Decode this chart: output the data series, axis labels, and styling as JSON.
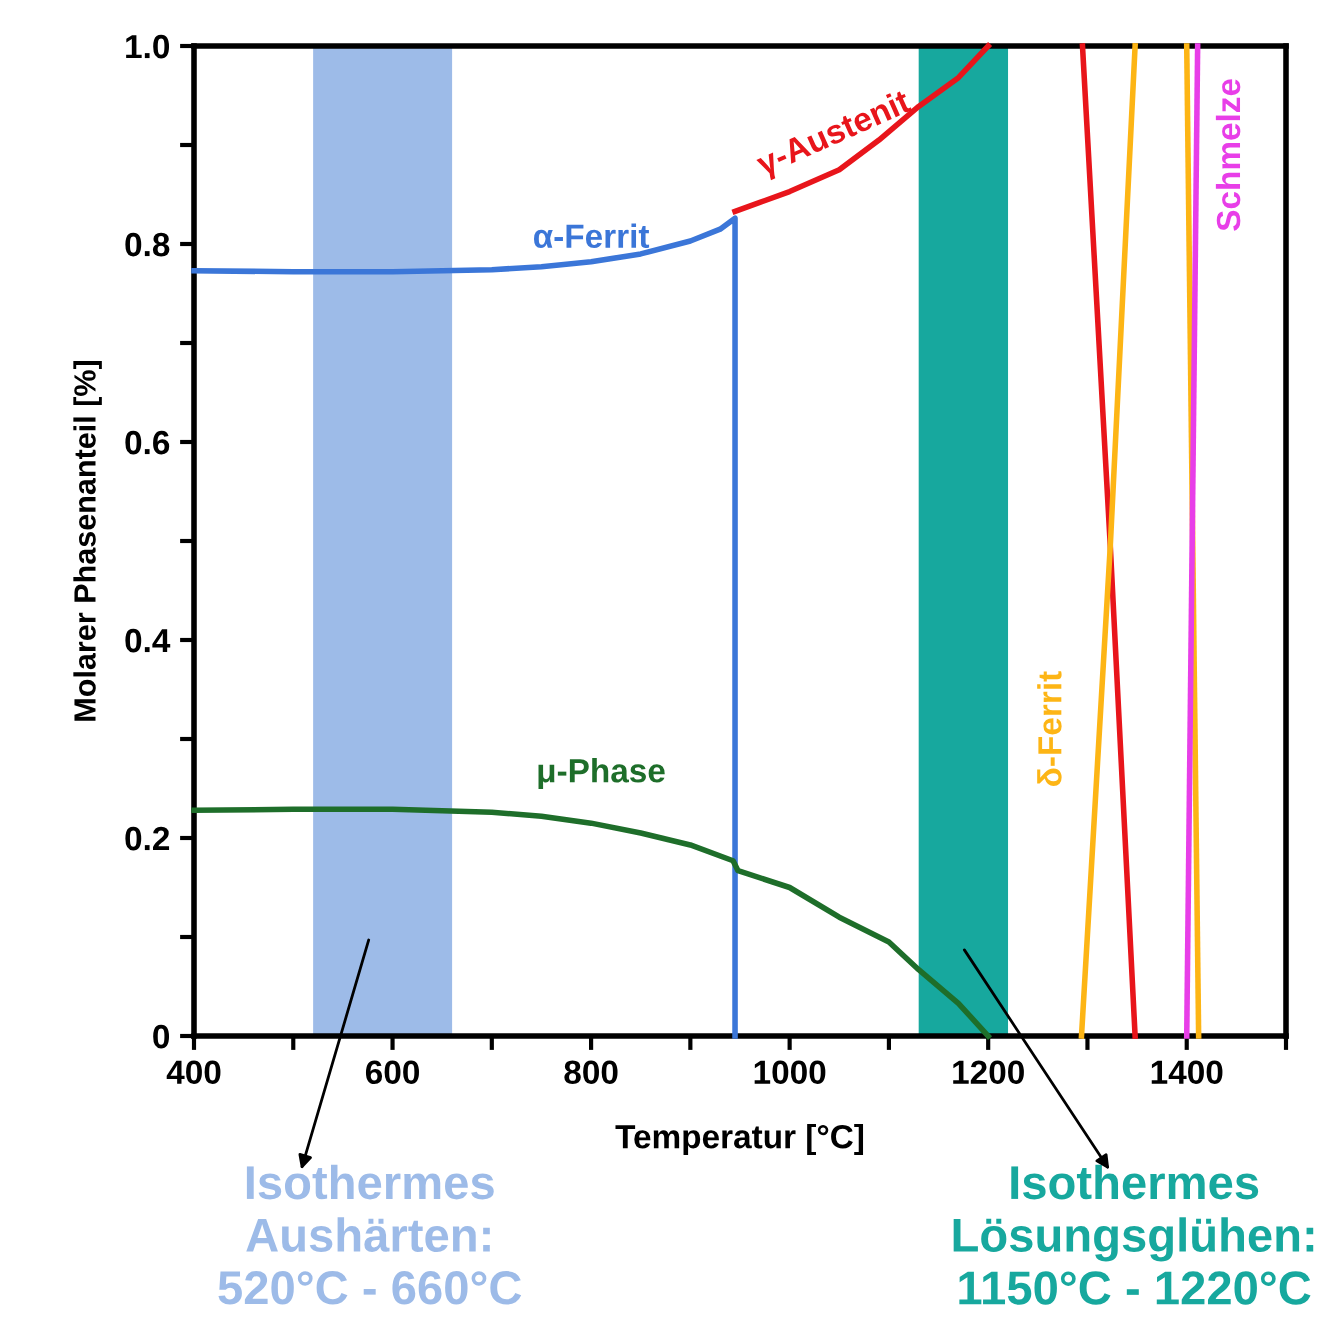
{
  "chart_data": {
    "type": "line",
    "xlabel": "Temperatur [°C]",
    "ylabel": "Molarer Phasenanteil [%]",
    "xlim": [
      400,
      1500
    ],
    "ylim": [
      0,
      1
    ],
    "xticks": [
      400,
      {
        "value": 500,
        "label": null
      },
      600,
      {
        "value": 700,
        "label": null
      },
      800,
      {
        "value": 900,
        "label": null
      },
      1000,
      {
        "value": 1100,
        "label": null
      },
      1200,
      {
        "value": 1300,
        "label": null
      },
      1400,
      {
        "value": 1500,
        "label": null
      }
    ],
    "yticks": [
      {
        "value": 0,
        "label": "0"
      },
      {
        "value": 0.1,
        "label": null
      },
      {
        "value": 0.2,
        "label": "0.2"
      },
      {
        "value": 0.3,
        "label": null
      },
      {
        "value": 0.4,
        "label": "0.4"
      },
      {
        "value": 0.5,
        "label": null
      },
      {
        "value": 0.6,
        "label": "0.6"
      },
      {
        "value": 0.7,
        "label": null
      },
      {
        "value": 0.8,
        "label": "0.8"
      },
      {
        "value": 0.9,
        "label": null
      },
      {
        "value": 1,
        "label": "1.0"
      }
    ],
    "grid": false,
    "legend": false,
    "marker": "none",
    "line_style": "solid",
    "bands": [
      {
        "axis": "x",
        "from": 520,
        "to": 660,
        "label": "Isothermes\nAushärten:\n520°C - 660°C",
        "color": "#9dbbe8"
      },
      {
        "axis": "x",
        "from": 1130,
        "to": 1220,
        "label": "Isothermes\nLösungsglühen:\n1150°C - 1220°C",
        "color": "#17a89e"
      }
    ],
    "series": [
      {
        "name": "α-Ferrit",
        "color": "#3b76d8",
        "x": [
          400,
          500,
          600,
          700,
          750,
          800,
          850,
          900,
          930,
          945,
          945
        ],
        "values": [
          0.773,
          0.772,
          0.772,
          0.774,
          0.777,
          0.782,
          0.79,
          0.803,
          0.815,
          0.826,
          0
        ]
      },
      {
        "name": "γ-Austenit",
        "color": "#e8151b",
        "x": [
          945,
          970,
          1000,
          1050,
          1090,
          1130,
          1170,
          1200
        ],
        "values": [
          0.833,
          0.842,
          0.853,
          0.875,
          0.905,
          0.939,
          0.968,
          1.0
        ]
      },
      {
        "color": "#e8151b",
        "x": [
          1295,
          1323,
          1348
        ],
        "values": [
          1.0,
          0.495,
          0
        ]
      },
      {
        "name": "μ-Phase",
        "color": "#1e6e2a",
        "x": [
          400,
          500,
          600,
          700,
          750,
          800,
          850,
          900,
          943,
          948,
          1000,
          1050,
          1100,
          1130,
          1170,
          1200
        ],
        "values": [
          0.228,
          0.229,
          0.229,
          0.226,
          0.222,
          0.215,
          0.205,
          0.193,
          0.177,
          0.167,
          0.15,
          0.12,
          0.095,
          0.067,
          0.033,
          0
        ]
      },
      {
        "name": "δ-Ferrit",
        "color": "#fdb515",
        "x": [
          1294,
          1323,
          1348
        ],
        "values": [
          0,
          0.495,
          1.0
        ]
      },
      {
        "color": "#fdb515",
        "x": [
          1400,
          1412
        ],
        "values": [
          1.0,
          0
        ]
      },
      {
        "name": "Schmelze",
        "color": "#e83ee8",
        "x": [
          1400,
          1411
        ],
        "values": [
          0,
          1.0
        ]
      }
    ]
  }
}
